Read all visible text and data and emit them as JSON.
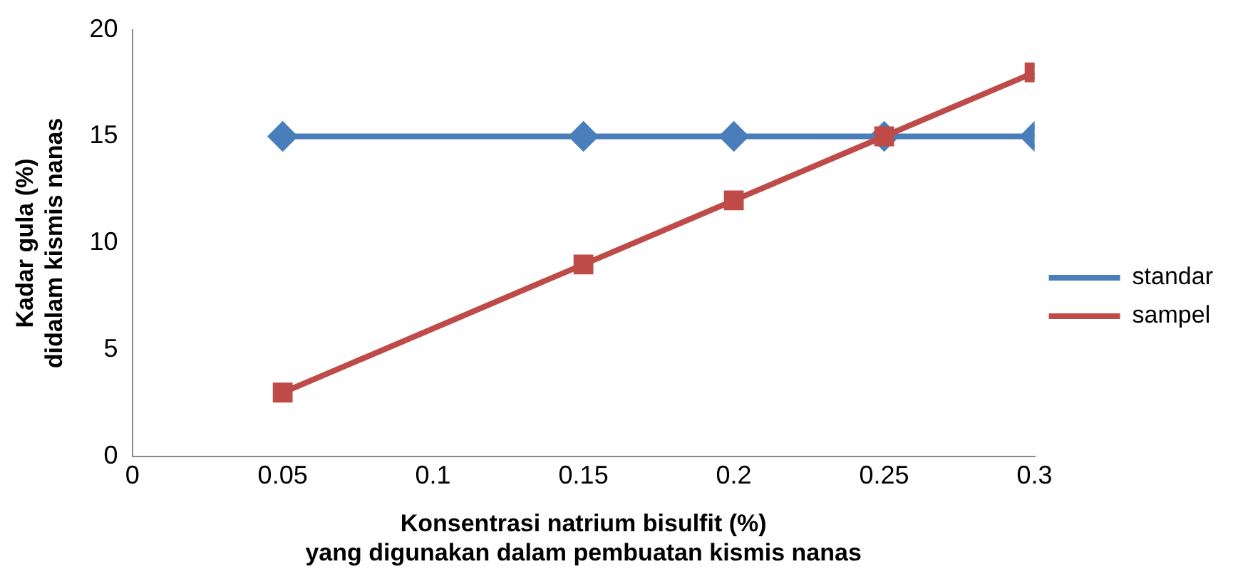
{
  "chart_data": {
    "type": "line",
    "xlabel": "Konsentrasi natrium bisulfit (%)\nyang digunakan dalam pembuatan kismis nanas",
    "ylabel": "Kadar gula (%)\ndidalam kismis nanas",
    "x": [
      0.05,
      0.15,
      0.2,
      0.25,
      0.3
    ],
    "xlim": [
      0,
      0.3
    ],
    "xticks": [
      0,
      0.05,
      0.1,
      0.15,
      0.2,
      0.25,
      0.3
    ],
    "ylim": [
      0,
      20
    ],
    "yticks": [
      0,
      5,
      10,
      15,
      20
    ],
    "grid": false,
    "legend": "right",
    "line_style": "solid",
    "series": [
      {
        "name": "standar",
        "color": "#4a7ebb",
        "values": [
          15,
          15,
          15,
          15,
          15
        ],
        "marker": "diamond"
      },
      {
        "name": "sampel",
        "color": "#be4b48",
        "values": [
          3,
          9,
          12,
          15,
          18
        ],
        "marker": "square"
      }
    ]
  }
}
